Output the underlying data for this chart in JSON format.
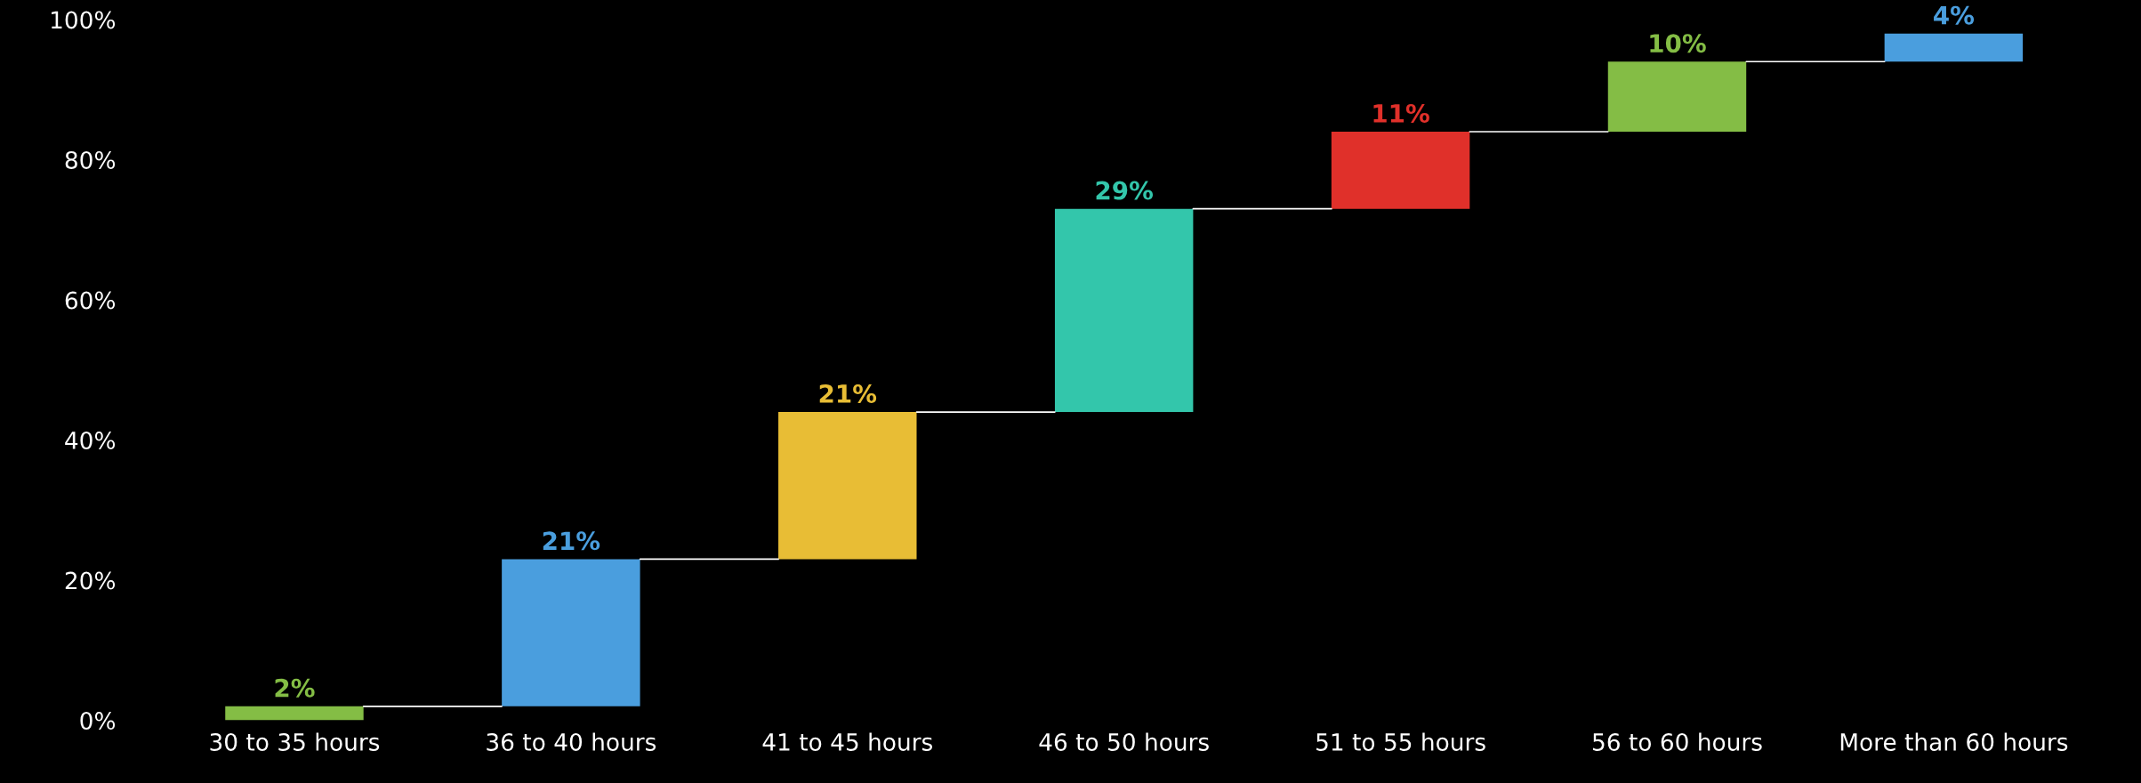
{
  "chart_data": {
    "type": "bar",
    "categories": [
      "30 to 35 hours",
      "36 to 40 hours",
      "41 to 45 hours",
      "46 to 50 hours",
      "51 to 55 hours",
      "56 to 60 hours",
      "More than 60 hours"
    ],
    "values": [
      2,
      21,
      21,
      29,
      11,
      10,
      4
    ],
    "base": [
      0,
      2,
      23,
      44,
      73,
      84,
      94
    ],
    "colors": [
      "#84bd45",
      "#4a9ede",
      "#e8bd35",
      "#33c6ab",
      "#e0302a",
      "#84bd45",
      "#4a9ede"
    ],
    "value_labels": [
      "2%",
      "21%",
      "21%",
      "29%",
      "11%",
      "10%",
      "4%"
    ],
    "ylim": [
      0,
      100
    ],
    "yticks": [
      {
        "value": 0,
        "label": "0%"
      },
      {
        "value": 20,
        "label": "20%"
      },
      {
        "value": 40,
        "label": "40%"
      },
      {
        "value": 60,
        "label": "60%"
      },
      {
        "value": 80,
        "label": "80%"
      },
      {
        "value": 100,
        "label": "100%"
      }
    ],
    "grid": false,
    "legend": false
  }
}
